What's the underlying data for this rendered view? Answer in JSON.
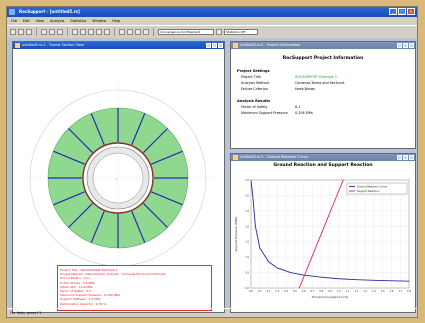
{
  "app": {
    "title": "RocSupport - [untitled5.rs]"
  },
  "menu": [
    "File",
    "Edit",
    "View",
    "Analysis",
    "Statistics",
    "Window",
    "Help"
  ],
  "toolbar": {
    "view_combo": "Convergence-Confinement",
    "stats_combo": "Statistics Off"
  },
  "tunnel_window": {
    "title": "untitled5.rs:1 - Tunnel Section View",
    "info": [
      "Project Title : ROCSUPPORT Example 1",
      "Project Method : Deterministic Analysis - Carranza-Torres and Fairhurst",
      "Tunnel Radius : 3 m",
      "In-Situ Stress : 3.5 MPa",
      "Intact UCS : 10.8 MPa",
      "Factor of Safety : 6.1",
      "Maximum Support Pressure : 0.256 MPa",
      "Support Stiffness : 1.5 MPa",
      "Deformation Capacity : 0.35 %"
    ]
  },
  "info_window": {
    "title": "untitled5.rs:2 - Project Information",
    "heading": "RocSupport Project Information",
    "project_section": "Project Settings",
    "project_rows": [
      {
        "k": "Project Title",
        "v": "ROCSUPPORT Example 1"
      },
      {
        "k": "Analysis Method",
        "v": "Carranza-Torres and Fairhurst"
      },
      {
        "k": "Failure Criterion",
        "v": "Hoek-Brown"
      }
    ],
    "analysis_section": "Analysis Results",
    "analysis_rows": [
      {
        "k": "Factor of Safety",
        "v": "6.1"
      },
      {
        "k": "Maximum Support Pressure",
        "v": "0.256 MPa"
      }
    ]
  },
  "chart_window": {
    "title": "untitled5.rs:3 - Ground Reaction Curve",
    "chart_data": {
      "type": "line",
      "title": "Ground Reaction and Support Reaction",
      "xlabel": "Tunnel Convergence (%)",
      "ylabel": "Support Pressure (MPa)",
      "xlim": [
        0,
        1.8
      ],
      "ylim": [
        0,
        3.5
      ],
      "x_ticks": [
        "0.0",
        "0.1",
        "0.2",
        "0.3",
        "0.4",
        "0.5",
        "0.6",
        "0.7",
        "0.8",
        "0.9",
        "1.0",
        "1.1",
        "1.2",
        "1.3",
        "1.4",
        "1.5",
        "1.6",
        "1.7",
        "1.8"
      ],
      "y_ticks": [
        "0.0",
        "0.5",
        "1.0",
        "1.5",
        "2.0",
        "2.5",
        "3.0",
        "3.5"
      ],
      "legend": "top-right",
      "series": [
        {
          "name": "Ground Reaction Curve",
          "color": "#2a2aa0",
          "x": [
            0.0,
            0.02,
            0.05,
            0.1,
            0.2,
            0.3,
            0.45,
            0.6,
            0.8,
            1.0,
            1.2,
            1.5,
            1.8
          ],
          "y": [
            3.5,
            3.0,
            2.0,
            1.3,
            0.85,
            0.65,
            0.5,
            0.42,
            0.35,
            0.3,
            0.27,
            0.24,
            0.22
          ]
        },
        {
          "name": "Support Reaction",
          "color": "#d4207a",
          "x": [
            0.55,
            1.05
          ],
          "y": [
            0.0,
            3.5
          ]
        }
      ]
    }
  },
  "statusbar": {
    "text": "For Help, press F1"
  },
  "colors": {
    "green": "#8fd88f",
    "blue_bolt": "#2a2ab0",
    "red": "#e03030"
  }
}
